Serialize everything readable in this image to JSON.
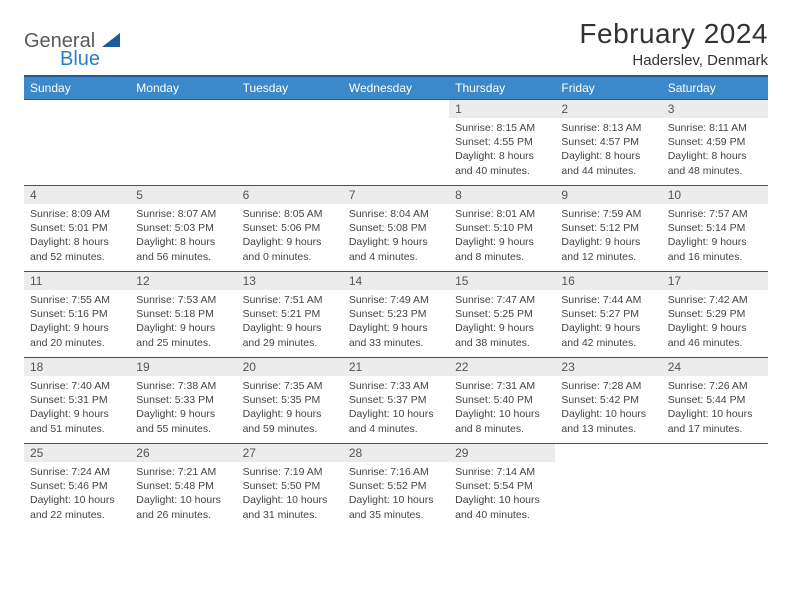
{
  "logo": {
    "part1": "General",
    "part2": "Blue"
  },
  "title": "February 2024",
  "location": "Haderslev, Denmark",
  "colors": {
    "header_bg": "#3b89c9",
    "header_border": "#1e5a9e",
    "day_head_bg": "#ececec",
    "text": "#333333"
  },
  "weekdays": [
    "Sunday",
    "Monday",
    "Tuesday",
    "Wednesday",
    "Thursday",
    "Friday",
    "Saturday"
  ],
  "weeks": [
    [
      null,
      null,
      null,
      null,
      {
        "n": "1",
        "sr": "8:15 AM",
        "ss": "4:55 PM",
        "dl": "8 hours and 40 minutes."
      },
      {
        "n": "2",
        "sr": "8:13 AM",
        "ss": "4:57 PM",
        "dl": "8 hours and 44 minutes."
      },
      {
        "n": "3",
        "sr": "8:11 AM",
        "ss": "4:59 PM",
        "dl": "8 hours and 48 minutes."
      }
    ],
    [
      {
        "n": "4",
        "sr": "8:09 AM",
        "ss": "5:01 PM",
        "dl": "8 hours and 52 minutes."
      },
      {
        "n": "5",
        "sr": "8:07 AM",
        "ss": "5:03 PM",
        "dl": "8 hours and 56 minutes."
      },
      {
        "n": "6",
        "sr": "8:05 AM",
        "ss": "5:06 PM",
        "dl": "9 hours and 0 minutes."
      },
      {
        "n": "7",
        "sr": "8:04 AM",
        "ss": "5:08 PM",
        "dl": "9 hours and 4 minutes."
      },
      {
        "n": "8",
        "sr": "8:01 AM",
        "ss": "5:10 PM",
        "dl": "9 hours and 8 minutes."
      },
      {
        "n": "9",
        "sr": "7:59 AM",
        "ss": "5:12 PM",
        "dl": "9 hours and 12 minutes."
      },
      {
        "n": "10",
        "sr": "7:57 AM",
        "ss": "5:14 PM",
        "dl": "9 hours and 16 minutes."
      }
    ],
    [
      {
        "n": "11",
        "sr": "7:55 AM",
        "ss": "5:16 PM",
        "dl": "9 hours and 20 minutes."
      },
      {
        "n": "12",
        "sr": "7:53 AM",
        "ss": "5:18 PM",
        "dl": "9 hours and 25 minutes."
      },
      {
        "n": "13",
        "sr": "7:51 AM",
        "ss": "5:21 PM",
        "dl": "9 hours and 29 minutes."
      },
      {
        "n": "14",
        "sr": "7:49 AM",
        "ss": "5:23 PM",
        "dl": "9 hours and 33 minutes."
      },
      {
        "n": "15",
        "sr": "7:47 AM",
        "ss": "5:25 PM",
        "dl": "9 hours and 38 minutes."
      },
      {
        "n": "16",
        "sr": "7:44 AM",
        "ss": "5:27 PM",
        "dl": "9 hours and 42 minutes."
      },
      {
        "n": "17",
        "sr": "7:42 AM",
        "ss": "5:29 PM",
        "dl": "9 hours and 46 minutes."
      }
    ],
    [
      {
        "n": "18",
        "sr": "7:40 AM",
        "ss": "5:31 PM",
        "dl": "9 hours and 51 minutes."
      },
      {
        "n": "19",
        "sr": "7:38 AM",
        "ss": "5:33 PM",
        "dl": "9 hours and 55 minutes."
      },
      {
        "n": "20",
        "sr": "7:35 AM",
        "ss": "5:35 PM",
        "dl": "9 hours and 59 minutes."
      },
      {
        "n": "21",
        "sr": "7:33 AM",
        "ss": "5:37 PM",
        "dl": "10 hours and 4 minutes."
      },
      {
        "n": "22",
        "sr": "7:31 AM",
        "ss": "5:40 PM",
        "dl": "10 hours and 8 minutes."
      },
      {
        "n": "23",
        "sr": "7:28 AM",
        "ss": "5:42 PM",
        "dl": "10 hours and 13 minutes."
      },
      {
        "n": "24",
        "sr": "7:26 AM",
        "ss": "5:44 PM",
        "dl": "10 hours and 17 minutes."
      }
    ],
    [
      {
        "n": "25",
        "sr": "7:24 AM",
        "ss": "5:46 PM",
        "dl": "10 hours and 22 minutes."
      },
      {
        "n": "26",
        "sr": "7:21 AM",
        "ss": "5:48 PM",
        "dl": "10 hours and 26 minutes."
      },
      {
        "n": "27",
        "sr": "7:19 AM",
        "ss": "5:50 PM",
        "dl": "10 hours and 31 minutes."
      },
      {
        "n": "28",
        "sr": "7:16 AM",
        "ss": "5:52 PM",
        "dl": "10 hours and 35 minutes."
      },
      {
        "n": "29",
        "sr": "7:14 AM",
        "ss": "5:54 PM",
        "dl": "10 hours and 40 minutes."
      },
      null,
      null
    ]
  ],
  "labels": {
    "sunrise": "Sunrise:",
    "sunset": "Sunset:",
    "daylight": "Daylight:"
  }
}
